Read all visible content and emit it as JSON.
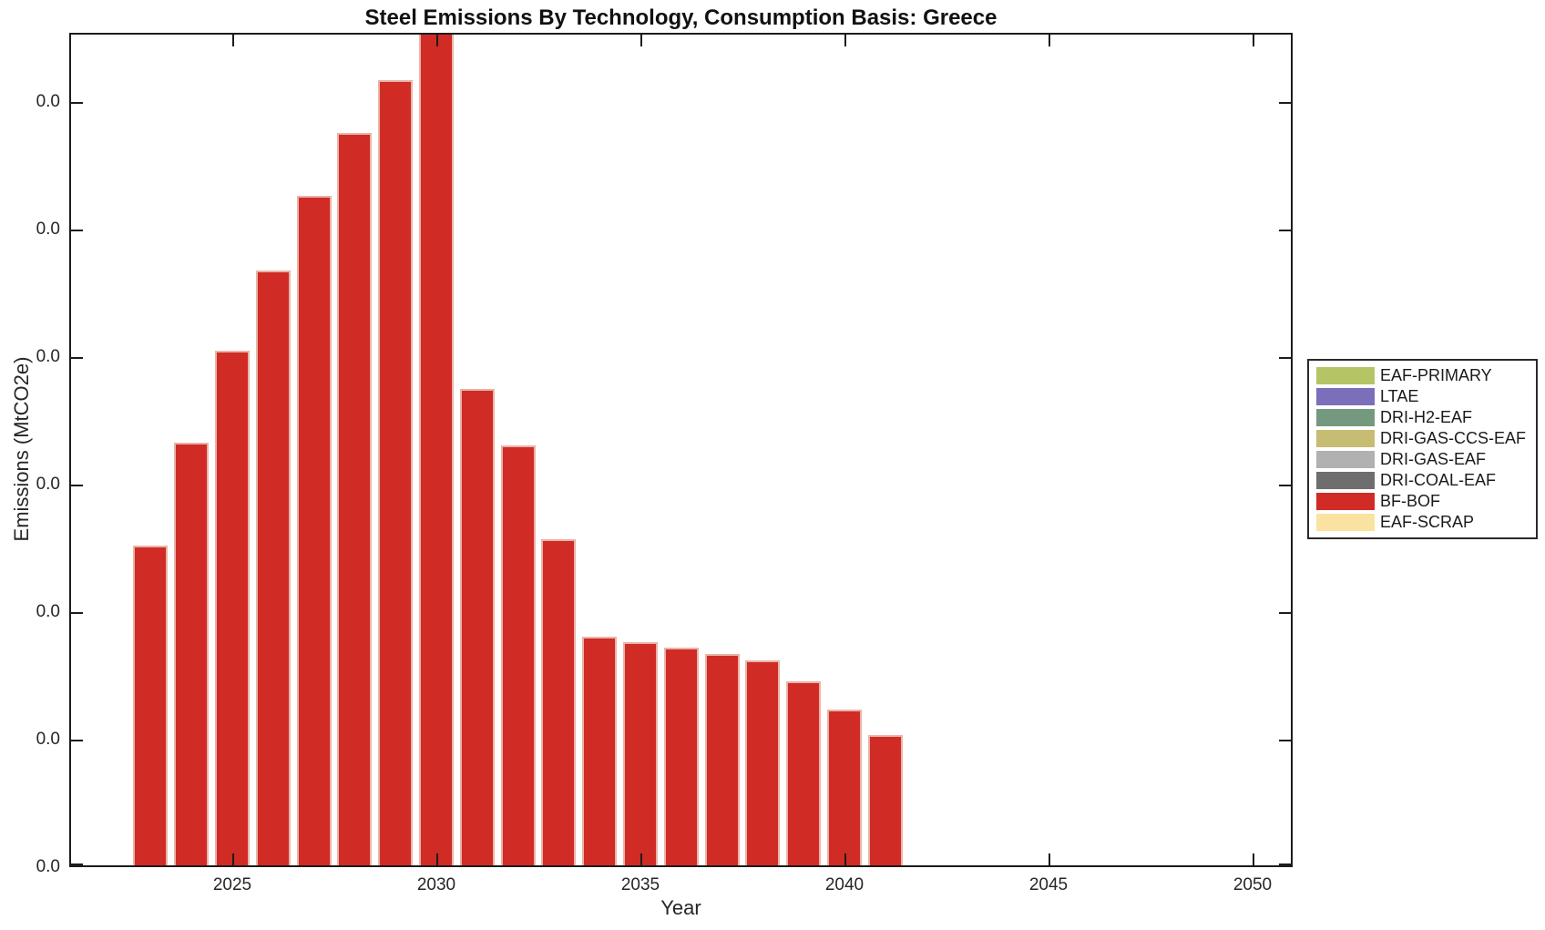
{
  "figure": {
    "title": "Steel Emissions By Technology, Consumption Basis: Greece",
    "background_color": "#ffffff",
    "axis_color": "#1c1c1c"
  },
  "axes": {
    "xlabel": "Year",
    "ylabel": "Emissions (MtCO2e)",
    "x_tick_labels": [
      "2025",
      "2030",
      "2035",
      "2040",
      "2045",
      "2050"
    ],
    "y_tick_labels": [
      "0.0",
      "0.0",
      "0.0",
      "0.0",
      "0.0",
      "0.0",
      "0.0"
    ]
  },
  "legend": {
    "entries": [
      {
        "label": "EAF-PRIMARY",
        "color": "#b5c566"
      },
      {
        "label": "LTAE",
        "color": "#7b6fba"
      },
      {
        "label": "DRI-H2-EAF",
        "color": "#75997f"
      },
      {
        "label": "DRI-GAS-CCS-EAF",
        "color": "#c6bc74"
      },
      {
        "label": "DRI-GAS-EAF",
        "color": "#b1b1b1"
      },
      {
        "label": "DRI-COAL-EAF",
        "color": "#6e6e6e"
      },
      {
        "label": "BF-BOF",
        "color": "#d02b24"
      },
      {
        "label": "EAF-SCRAP",
        "color": "#fae3a1"
      }
    ]
  },
  "chart_data": {
    "type": "bar",
    "title": "Steel Emissions By Technology, Consumption Basis: Greece",
    "xlabel": "Year",
    "ylabel": "Emissions (MtCO2e)",
    "x": [
      2023,
      2024,
      2025,
      2026,
      2027,
      2028,
      2029,
      2030,
      2031,
      2032,
      2033,
      2034,
      2035,
      2036,
      2037,
      2038,
      2039,
      2040,
      2041
    ],
    "x_ticks": [
      2025,
      2030,
      2035,
      2040,
      2045,
      2050
    ],
    "xlim": [
      2021.5,
      2051
    ],
    "y_tick_labels_displayed": [
      "0.0",
      "0.0",
      "0.0",
      "0.0",
      "0.0",
      "0.0",
      "0.0"
    ],
    "grid": false,
    "legend_position": "outside-right",
    "series": [
      {
        "name": "BF-BOF",
        "color": "#d02b24",
        "values_axis_fraction": [
          0.385,
          0.509,
          0.619,
          0.716,
          0.806,
          0.882,
          0.945,
          1.02,
          0.573,
          0.505,
          0.393,
          0.275,
          0.269,
          0.262,
          0.254,
          0.247,
          0.221,
          0.188,
          0.157
        ]
      }
    ],
    "notes": {
      "units": "bar heights given as fraction of visible y-axis height; all y tick labels render as 0.0",
      "bar_2030_clipped_at_top": true,
      "only_visible_series": "BF-BOF; other legend technologies show no visible bars"
    }
  }
}
